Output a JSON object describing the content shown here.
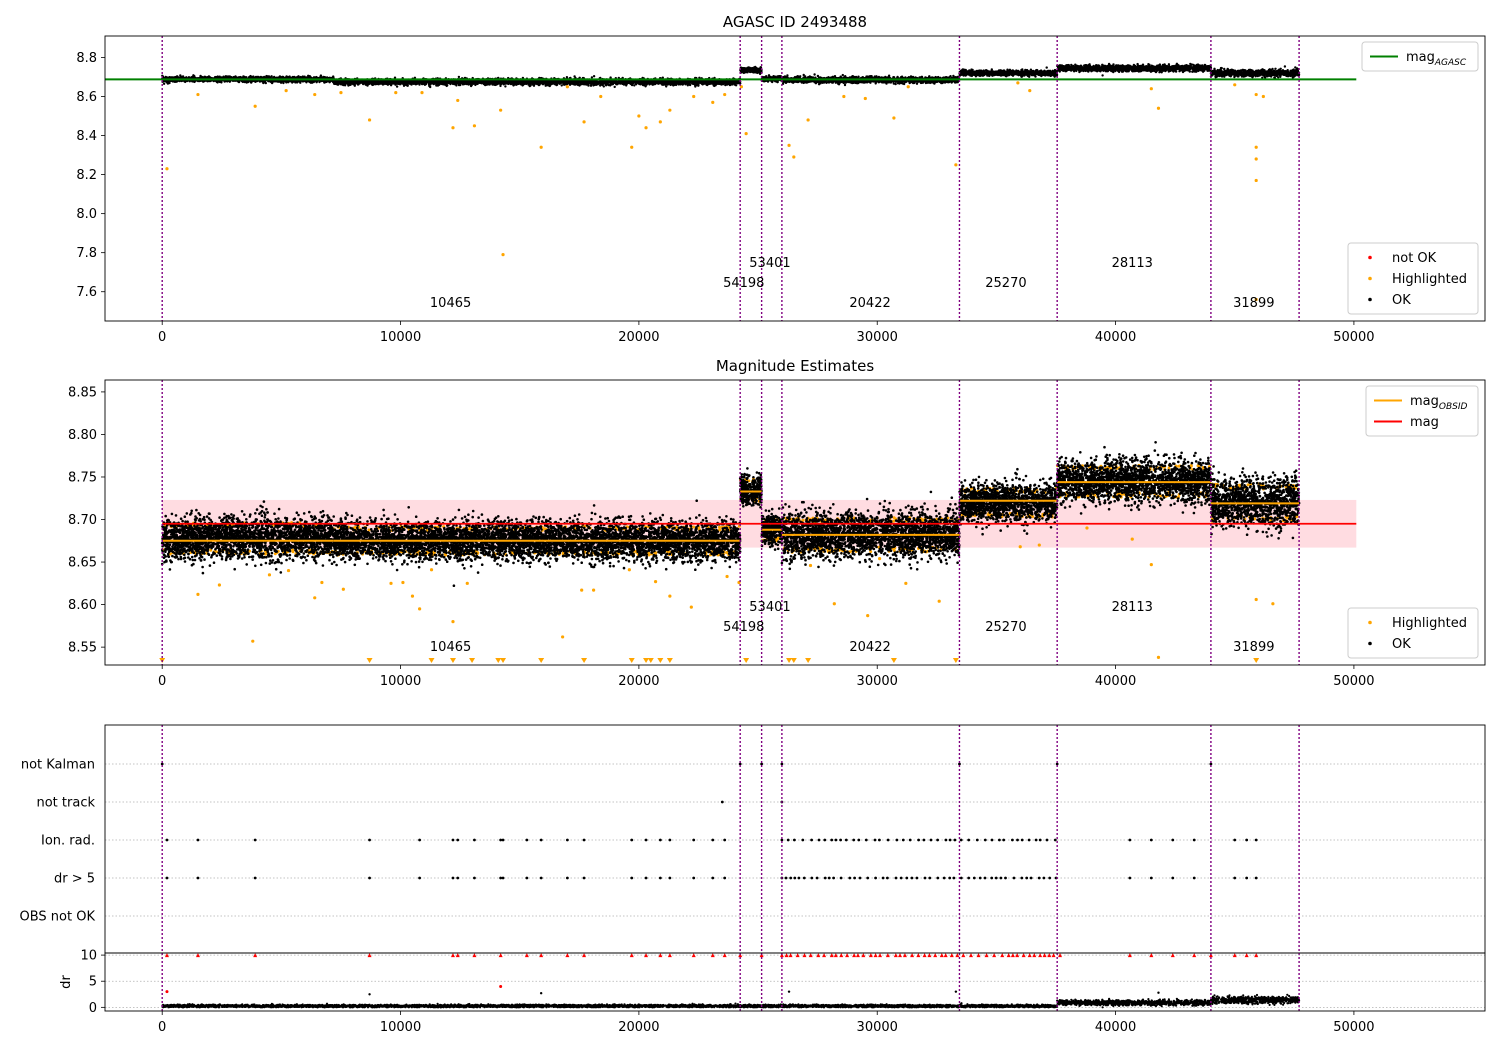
{
  "figure": {
    "colors": {
      "ok": "#000000",
      "highlighted": "#ffa500",
      "not_ok": "#ff0000",
      "obs_line": "#800080",
      "agasc_line": "#008000",
      "mag_line": "#ff0000",
      "mag_band": "#ffc0c8",
      "obsid_line": "#ffa500"
    },
    "obs_boundaries": [
      0,
      24250,
      25150,
      26000,
      33450,
      37550,
      44000,
      47700
    ],
    "obs_labels": [
      {
        "text": "10465",
        "x": 12100,
        "row": 0
      },
      {
        "text": "54198",
        "x": 24400,
        "row": 1
      },
      {
        "text": "53401",
        "x": 25500,
        "row": 2
      },
      {
        "text": "20422",
        "x": 29700,
        "row": 0
      },
      {
        "text": "25270",
        "x": 35400,
        "row": 1
      },
      {
        "text": "28113",
        "x": 40700,
        "row": 2
      },
      {
        "text": "31899",
        "x": 45800,
        "row": 0
      }
    ]
  },
  "chart_data": [
    {
      "type": "scatter",
      "title": "AGASC ID 2493488",
      "xlim": [
        -2400,
        55500
      ],
      "ylim": [
        7.45,
        8.91
      ],
      "xticks": [
        "0",
        "10000",
        "20000",
        "30000",
        "40000",
        "50000"
      ],
      "xtick_values": [
        0,
        10000,
        20000,
        30000,
        40000,
        50000
      ],
      "yticks": [
        "7.6",
        "7.8",
        "8.0",
        "8.2",
        "8.4",
        "8.6",
        "8.8"
      ],
      "ytick_values": [
        7.6,
        7.8,
        8.0,
        8.2,
        8.4,
        8.6,
        8.8
      ],
      "legend_top": {
        "placement": "top-right",
        "entries": [
          {
            "label": "mag",
            "sub": "AGASC",
            "kind": "line",
            "color_key": "agasc_line"
          }
        ]
      },
      "legend_bottom": {
        "placement": "bottom-right",
        "entries": [
          {
            "label": "not OK",
            "kind": "dot",
            "color_key": "not_ok"
          },
          {
            "label": "Highlighted",
            "kind": "dot",
            "color_key": "highlighted"
          },
          {
            "label": "OK",
            "kind": "dot",
            "color_key": "ok"
          }
        ]
      },
      "agasc_mag": 8.688,
      "agasc_x_range": [
        -2400,
        50100
      ],
      "segments": [
        {
          "x0": 0,
          "x1": 7200,
          "mean": 8.688,
          "spread": 0.012
        },
        {
          "x0": 7200,
          "x1": 24250,
          "mean": 8.675,
          "spread": 0.014
        },
        {
          "x0": 24250,
          "x1": 25150,
          "mean": 8.735,
          "spread": 0.012
        },
        {
          "x0": 25150,
          "x1": 26000,
          "mean": 8.69,
          "spread": 0.012
        },
        {
          "x0": 26000,
          "x1": 33450,
          "mean": 8.685,
          "spread": 0.014
        },
        {
          "x0": 33450,
          "x1": 37550,
          "mean": 8.72,
          "spread": 0.012
        },
        {
          "x0": 37550,
          "x1": 44000,
          "mean": 8.745,
          "spread": 0.014
        },
        {
          "x0": 44000,
          "x1": 47700,
          "mean": 8.72,
          "spread": 0.016
        }
      ],
      "outliers": [
        [
          200,
          8.23
        ],
        [
          1500,
          8.61
        ],
        [
          3900,
          8.55
        ],
        [
          5200,
          8.63
        ],
        [
          6400,
          8.61
        ],
        [
          7500,
          8.62
        ],
        [
          8700,
          8.48
        ],
        [
          9800,
          8.62
        ],
        [
          10900,
          8.62
        ],
        [
          12200,
          8.44
        ],
        [
          12400,
          8.58
        ],
        [
          13100,
          8.45
        ],
        [
          14200,
          8.53
        ],
        [
          14300,
          7.79
        ],
        [
          15900,
          8.34
        ],
        [
          17000,
          8.65
        ],
        [
          17700,
          8.47
        ],
        [
          18400,
          8.6
        ],
        [
          19700,
          8.34
        ],
        [
          20000,
          8.5
        ],
        [
          20300,
          8.44
        ],
        [
          20900,
          8.47
        ],
        [
          21300,
          8.53
        ],
        [
          22300,
          8.6
        ],
        [
          23100,
          8.57
        ],
        [
          23600,
          8.61
        ],
        [
          24300,
          8.65
        ],
        [
          24500,
          8.41
        ],
        [
          26300,
          8.35
        ],
        [
          26500,
          8.29
        ],
        [
          27100,
          8.48
        ],
        [
          28600,
          8.6
        ],
        [
          29500,
          8.59
        ],
        [
          30700,
          8.49
        ],
        [
          31300,
          8.65
        ],
        [
          33300,
          8.25
        ],
        [
          35900,
          8.67
        ],
        [
          36400,
          8.63
        ],
        [
          41500,
          8.64
        ],
        [
          41800,
          8.54
        ],
        [
          45000,
          8.66
        ],
        [
          45900,
          8.61
        ],
        [
          45900,
          8.34
        ],
        [
          45900,
          8.28
        ],
        [
          45900,
          8.17
        ],
        [
          45900,
          7.56
        ],
        [
          46200,
          8.6
        ]
      ]
    },
    {
      "type": "scatter",
      "title": "Magnitude Estimates",
      "xlim": [
        -2400,
        55500
      ],
      "ylim": [
        8.529,
        8.864
      ],
      "xticks": [
        "0",
        "10000",
        "20000",
        "30000",
        "40000",
        "50000"
      ],
      "xtick_values": [
        0,
        10000,
        20000,
        30000,
        40000,
        50000
      ],
      "yticks": [
        "8.55",
        "8.60",
        "8.65",
        "8.70",
        "8.75",
        "8.80",
        "8.85"
      ],
      "ytick_values": [
        8.55,
        8.6,
        8.65,
        8.7,
        8.75,
        8.8,
        8.85
      ],
      "legend_top": {
        "placement": "top-right",
        "entries": [
          {
            "label": "mag",
            "sub": "OBSID",
            "kind": "line",
            "color_key": "obsid_line"
          },
          {
            "label": "mag",
            "kind": "line",
            "color_key": "mag_line"
          }
        ]
      },
      "legend_bottom": {
        "placement": "bottom-right",
        "entries": [
          {
            "label": "Highlighted",
            "kind": "dot",
            "color_key": "highlighted"
          },
          {
            "label": "OK",
            "kind": "dot",
            "color_key": "ok"
          }
        ]
      },
      "mean_mag": 8.695,
      "mag_band": [
        8.667,
        8.723
      ],
      "mag_x_range": [
        0,
        50100
      ],
      "segments": [
        {
          "x0": 0,
          "x1": 7200,
          "mean": 8.678,
          "obsid_mag": 8.675,
          "spread": 0.022
        },
        {
          "x0": 7200,
          "x1": 24250,
          "mean": 8.675,
          "obsid_mag": 8.675,
          "spread": 0.02
        },
        {
          "x0": 24250,
          "x1": 25150,
          "mean": 8.735,
          "obsid_mag": 8.733,
          "spread": 0.016
        },
        {
          "x0": 25150,
          "x1": 26000,
          "mean": 8.688,
          "obsid_mag": 8.688,
          "spread": 0.016
        },
        {
          "x0": 26000,
          "x1": 33450,
          "mean": 8.682,
          "obsid_mag": 8.682,
          "spread": 0.024
        },
        {
          "x0": 33450,
          "x1": 37550,
          "mean": 8.72,
          "obsid_mag": 8.722,
          "spread": 0.02
        },
        {
          "x0": 37550,
          "x1": 44000,
          "mean": 8.745,
          "obsid_mag": 8.744,
          "spread": 0.022
        },
        {
          "x0": 44000,
          "x1": 47700,
          "mean": 8.72,
          "obsid_mag": 8.719,
          "spread": 0.026
        }
      ],
      "outliers": [
        [
          1500,
          8.612
        ],
        [
          2400,
          8.623
        ],
        [
          3800,
          8.557
        ],
        [
          4500,
          8.635
        ],
        [
          5300,
          8.64
        ],
        [
          6400,
          8.608
        ],
        [
          6700,
          8.626
        ],
        [
          7600,
          8.618
        ],
        [
          9600,
          8.625
        ],
        [
          10100,
          8.626
        ],
        [
          10500,
          8.61
        ],
        [
          10800,
          8.595
        ],
        [
          11300,
          8.641
        ],
        [
          12200,
          8.58
        ],
        [
          12800,
          8.625
        ],
        [
          16800,
          8.562
        ],
        [
          17600,
          8.617
        ],
        [
          18100,
          8.617
        ],
        [
          19600,
          8.641
        ],
        [
          20700,
          8.627
        ],
        [
          21300,
          8.61
        ],
        [
          22200,
          8.597
        ],
        [
          23700,
          8.633
        ],
        [
          24200,
          8.626
        ],
        [
          27200,
          8.646
        ],
        [
          28200,
          8.601
        ],
        [
          29600,
          8.587
        ],
        [
          30100,
          8.654
        ],
        [
          31200,
          8.625
        ],
        [
          32600,
          8.604
        ],
        [
          36000,
          8.668
        ],
        [
          36800,
          8.67
        ],
        [
          38800,
          8.69
        ],
        [
          40700,
          8.677
        ],
        [
          41500,
          8.647
        ],
        [
          41800,
          8.538
        ],
        [
          45900,
          8.606
        ],
        [
          46600,
          8.601
        ]
      ],
      "clipped_below": [
        0,
        8700,
        11300,
        12200,
        13000,
        14100,
        14300,
        15900,
        17700,
        19700,
        20300,
        20500,
        20900,
        21300,
        24500,
        26300,
        26500,
        27100,
        30700,
        33300,
        45900
      ]
    },
    {
      "type": "scatter",
      "title": "",
      "xlim": [
        -2400,
        55500
      ],
      "categories": [
        "not Kalman",
        "not track",
        "Ion. rad.",
        "dr > 5",
        "OBS not OK"
      ],
      "flags": {
        "not Kalman": [
          0,
          24250,
          25150,
          26000,
          33450,
          37550,
          44000
        ],
        "not track": [
          23500,
          26000
        ],
        "Ion. rad.": [
          200,
          1500,
          3900,
          8700,
          10800,
          12200,
          12400,
          13100,
          14200,
          14300,
          15300,
          15900,
          17000,
          17700,
          19700,
          20300,
          20900,
          21300,
          22300,
          23100,
          23600,
          40600,
          41500,
          42400,
          43300,
          45000,
          45500,
          45900
        ],
        "dr > 5": [
          200,
          1500,
          3900,
          8700,
          10800,
          12200,
          12400,
          13100,
          14200,
          14300,
          15300,
          15900,
          17000,
          17700,
          19700,
          20300,
          20900,
          21300,
          22300,
          23100,
          23600,
          40600,
          41500,
          42400,
          43300,
          45000,
          45500,
          45900
        ],
        "OBS not OK": []
      },
      "dense_ranges": {
        "Ion. rad.": [
          26000,
          37700
        ],
        "dr > 5": [
          26000,
          37700
        ]
      }
    },
    {
      "type": "scatter",
      "title": "",
      "ylabel": "dr",
      "xlim": [
        -2400,
        55500
      ],
      "ylim": [
        -0.7,
        10.4
      ],
      "xticks": [
        "0",
        "10000",
        "20000",
        "30000",
        "40000",
        "50000"
      ],
      "xtick_values": [
        0,
        10000,
        20000,
        30000,
        40000,
        50000
      ],
      "yticks": [
        "0",
        "5",
        "10"
      ],
      "ytick_values": [
        0,
        5,
        10
      ],
      "segments": [
        {
          "x0": 0,
          "x1": 37550,
          "base": 0.25,
          "spread": 0.25
        },
        {
          "x0": 37550,
          "x1": 44000,
          "base": 0.9,
          "spread": 0.5
        },
        {
          "x0": 44000,
          "x1": 47700,
          "base": 1.4,
          "spread": 0.7
        }
      ],
      "capped_at_10": [
        200,
        1500,
        3900,
        8700,
        12200,
        12400,
        13100,
        14200,
        15300,
        15900,
        17000,
        17700,
        19700,
        20300,
        20900,
        21300,
        22300,
        23100,
        23600,
        24250,
        25150,
        40600,
        41500,
        42400,
        43300,
        44000,
        45000,
        45500,
        45900
      ],
      "capped_dense_range": [
        26000,
        37700
      ],
      "outliers": [
        [
          200,
          3.0
        ],
        [
          8700,
          2.5
        ],
        [
          14200,
          4.0
        ],
        [
          15900,
          2.7
        ],
        [
          26300,
          3.0
        ],
        [
          33300,
          3.0
        ],
        [
          41800,
          2.8
        ],
        [
          45900,
          1.6
        ]
      ]
    }
  ]
}
